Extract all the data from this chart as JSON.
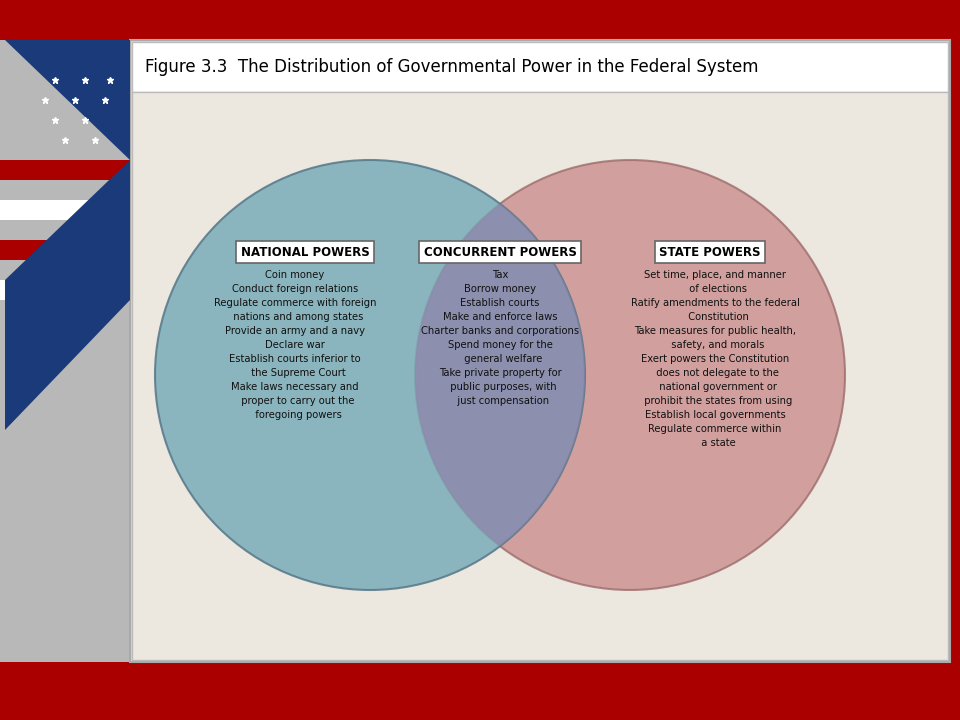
{
  "title": "Figure 3.3  The Distribution of Governmental Power in the Federal System",
  "bg_red": "#aa0000",
  "bg_silver": "#b8b8b8",
  "panel_bg": "#e8e4dc",
  "header_bg": "#ffffff",
  "national_color": "#7aadb8",
  "national_alpha": 0.85,
  "state_color": "#c98888",
  "state_alpha": 0.75,
  "concurrent_color": "#9080aa",
  "national_label": "NATIONAL POWERS",
  "concurrent_label": "CONCURRENT POWERS",
  "state_label": "STATE POWERS",
  "national_items": "Coin money\nConduct foreign relations\nRegulate commerce with foreign\n  nations and among states\nProvide an army and a navy\nDeclare war\nEstablish courts inferior to\n  the Supreme Court\nMake laws necessary and\n  proper to carry out the\n  foregoing powers",
  "concurrent_items": "Tax\nBorrow money\nEstablish courts\nMake and enforce laws\nCharter banks and corporations\nSpend money for the\n  general welfare\nTake private property for\n  public purposes, with\n  just compensation",
  "state_items": "Set time, place, and manner\n  of elections\nRatify amendments to the federal\n  Constitution\nTake measures for public health,\n  safety, and morals\nExert powers the Constitution\n  does not delegate to the\n  national government or\n  prohibit the states from using\nEstablish local governments\nRegulate commerce within\n  a state"
}
